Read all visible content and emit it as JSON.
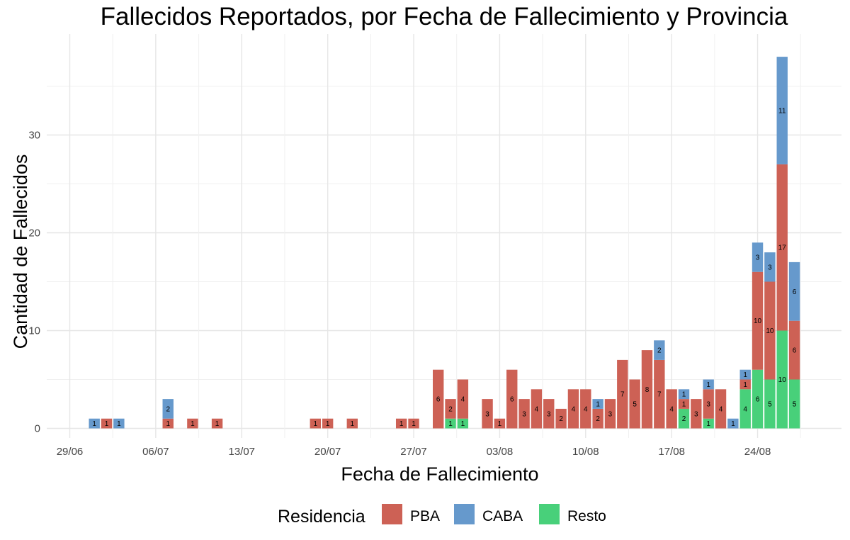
{
  "chart_data": {
    "type": "bar",
    "stacked": true,
    "title": "Fallecidos Reportados, por Fecha de Fallecimiento y Provincia",
    "xlabel": "Fecha de Fallecimiento",
    "ylabel": "Cantidad de Fallecidos",
    "ylim": [
      0,
      38
    ],
    "yticks": [
      0,
      10,
      20,
      30
    ],
    "xtick_labels": [
      "29/06",
      "06/07",
      "13/07",
      "20/07",
      "27/07",
      "03/08",
      "10/08",
      "17/08",
      "24/08"
    ],
    "grid": true,
    "legend": {
      "title": "Residencia",
      "position": "bottom",
      "entries": [
        "PBA",
        "CABA",
        "Resto"
      ]
    },
    "colors": {
      "PBA": "#cd6155",
      "CABA": "#6699cc",
      "Resto": "#48d07a"
    },
    "categories": [
      "29/06",
      "30/06",
      "01/07",
      "02/07",
      "03/07",
      "04/07",
      "05/07",
      "06/07",
      "07/07",
      "08/07",
      "09/07",
      "10/07",
      "11/07",
      "12/07",
      "13/07",
      "14/07",
      "15/07",
      "16/07",
      "17/07",
      "18/07",
      "19/07",
      "20/07",
      "21/07",
      "22/07",
      "23/07",
      "24/07",
      "25/07",
      "26/07",
      "27/07",
      "28/07",
      "29/07",
      "30/07",
      "31/07",
      "01/08",
      "02/08",
      "03/08",
      "04/08",
      "05/08",
      "06/08",
      "07/08",
      "08/08",
      "09/08",
      "10/08",
      "11/08",
      "12/08",
      "13/08",
      "14/08",
      "15/08",
      "16/08",
      "17/08",
      "18/08",
      "19/08",
      "20/08",
      "21/08",
      "22/08",
      "23/08",
      "24/08",
      "25/08",
      "26/08",
      "27/08"
    ],
    "series": [
      {
        "name": "PBA",
        "values": [
          0,
          0,
          0,
          1,
          0,
          0,
          0,
          0,
          1,
          0,
          1,
          0,
          1,
          0,
          0,
          0,
          0,
          0,
          0,
          0,
          1,
          1,
          0,
          1,
          0,
          0,
          0,
          1,
          1,
          0,
          6,
          2,
          4,
          0,
          3,
          1,
          6,
          3,
          4,
          3,
          2,
          4,
          4,
          2,
          3,
          7,
          5,
          8,
          7,
          4,
          1,
          3,
          3,
          4,
          0,
          1,
          10,
          10,
          17,
          6
        ]
      },
      {
        "name": "CABA",
        "values": [
          0,
          0,
          1,
          0,
          1,
          0,
          0,
          0,
          2,
          0,
          0,
          0,
          0,
          0,
          0,
          0,
          0,
          0,
          0,
          0,
          0,
          0,
          0,
          0,
          0,
          0,
          0,
          0,
          0,
          0,
          0,
          0,
          0,
          0,
          0,
          0,
          0,
          0,
          0,
          0,
          0,
          0,
          0,
          1,
          0,
          0,
          0,
          0,
          2,
          0,
          1,
          0,
          1,
          0,
          1,
          1,
          3,
          3,
          11,
          6
        ]
      },
      {
        "name": "Resto",
        "values": [
          0,
          0,
          0,
          0,
          0,
          0,
          0,
          0,
          0,
          0,
          0,
          0,
          0,
          0,
          0,
          0,
          0,
          0,
          0,
          0,
          0,
          0,
          0,
          0,
          0,
          0,
          0,
          0,
          0,
          0,
          0,
          1,
          1,
          0,
          0,
          0,
          0,
          0,
          0,
          0,
          0,
          0,
          0,
          0,
          0,
          0,
          0,
          0,
          0,
          0,
          2,
          0,
          1,
          0,
          0,
          4,
          6,
          5,
          10,
          5
        ]
      }
    ]
  }
}
